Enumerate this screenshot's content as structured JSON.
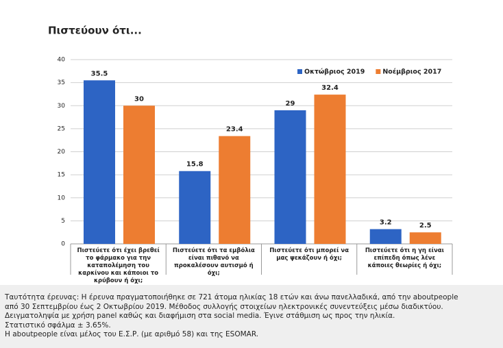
{
  "chart_data": {
    "type": "bar",
    "title": "Πιστεύουν ότι...",
    "categories": [
      "Πιστεύετε ότι έχει βρεθεί το φάρμακο για την καταπολέμηση του καρκίνου και κάποιοι το κρύβουν ή όχι;",
      "Πιστεύετε ότι τα εμβόλια είναι πιθανό να προκαλέσουν αυτισμό ή όχι;",
      "Πιστεύετε ότι μπορεί να μας ψεκάζουν ή όχι;",
      "Πιστεύετε ότι η γη είναι επίπεδη όπως λένε κάποιες θεωρίες ή όχι;"
    ],
    "series": [
      {
        "name": "Οκτώβριος 2019",
        "color": "#2d64c4",
        "values": [
          35.5,
          15.8,
          29,
          3.2
        ]
      },
      {
        "name": "Νοέμβριος 2017",
        "color": "#ed7d31",
        "values": [
          30,
          23.4,
          32.4,
          2.5
        ]
      }
    ],
    "ylim": [
      0,
      40
    ],
    "yticks": [
      0,
      5,
      10,
      15,
      20,
      25,
      30,
      35,
      40
    ],
    "grid": true,
    "legend": "top-right"
  },
  "footer": {
    "lines": [
      "Ταυτότητα έρευνας: Η έρευνα πραγματοποιήθηκε σε 721 άτομα ηλικίας 18 ετών και άνω πανελλαδικά, από την aboutpeople",
      "από 30 Σεπτεμβρίου έως 2 Οκτωβρίου 2019. Μέθοδος συλλογής στοιχείων ηλεκτρονικές συνεντεύξεις μέσω διαδικτύου.",
      "Δειγματοληψία με χρήση panel καθώς και διαφήμιση στα social media. Έγινε στάθμιση ως προς την ηλικία.",
      "Στατιστικό σφάλμα ± 3.65%.",
      "Η aboutpeople είναι μέλος του Ε.Σ.Ρ. (με αριθμό 58) και της ESOMAR."
    ]
  }
}
